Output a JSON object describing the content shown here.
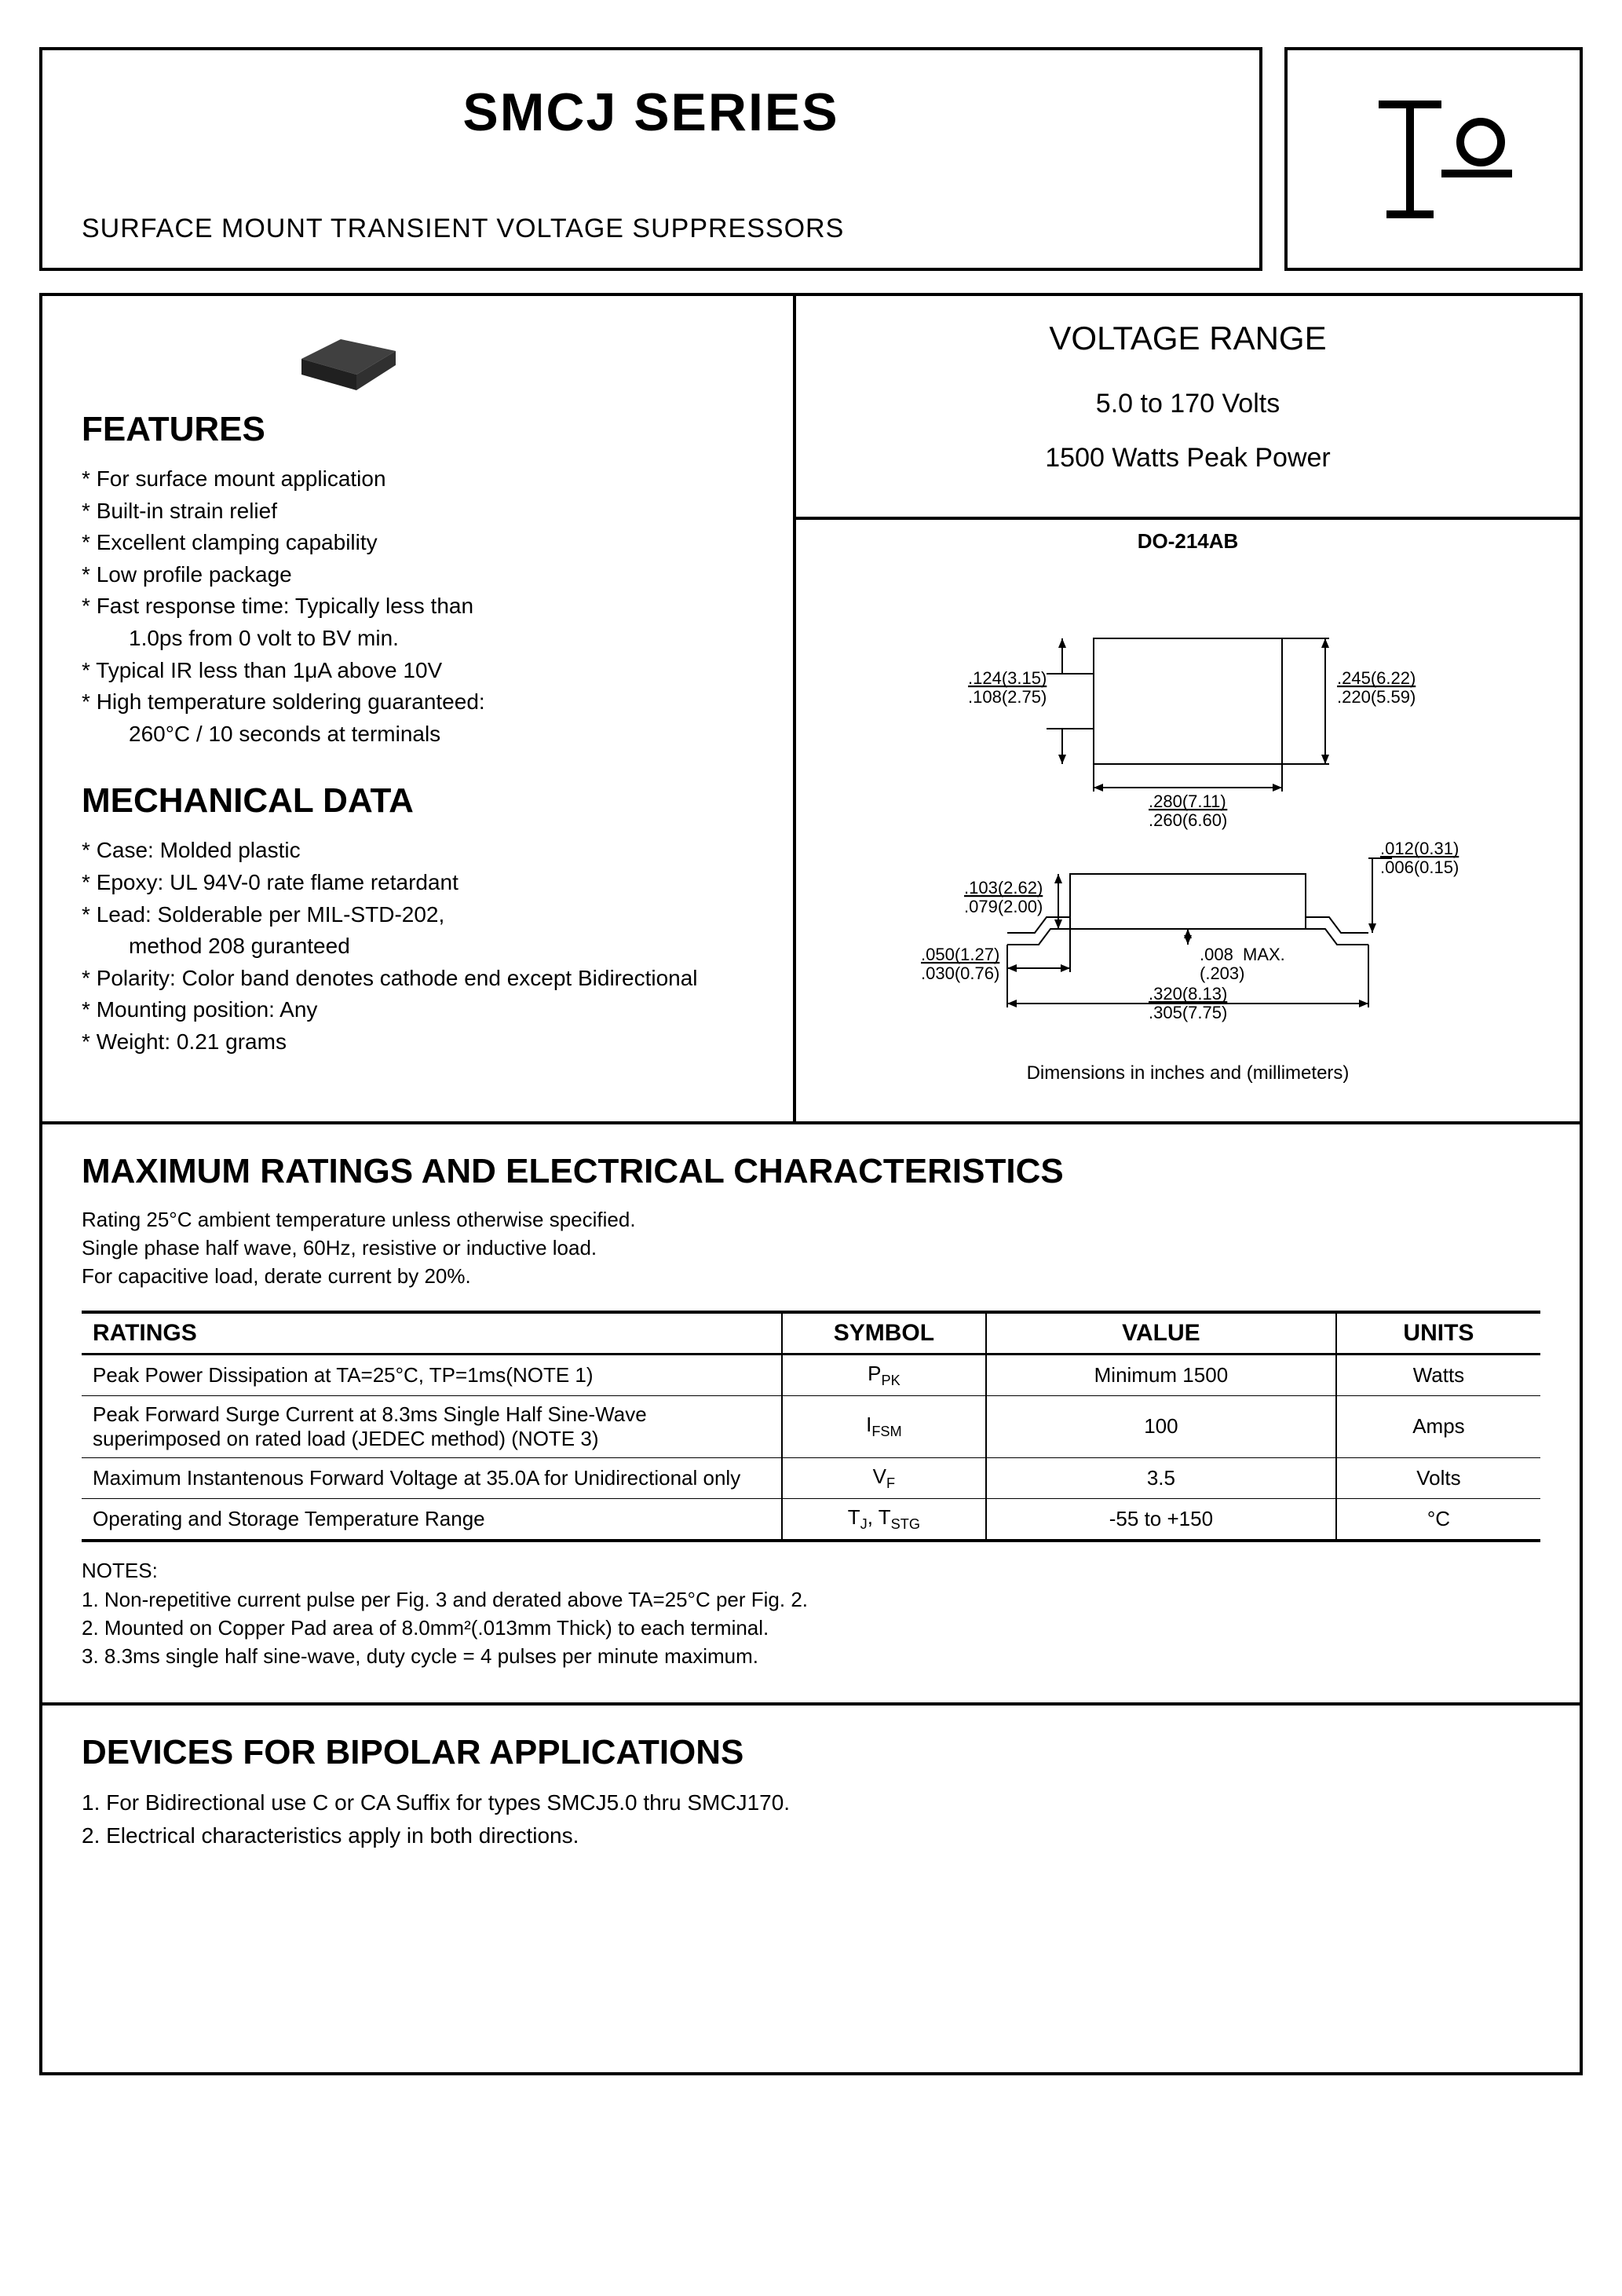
{
  "header": {
    "title": "SMCJ SERIES",
    "subtitle": "SURFACE MOUNT TRANSIENT VOLTAGE SUPPRESSORS"
  },
  "features": {
    "heading": "FEATURES",
    "items": [
      "For surface mount application",
      "Built-in strain relief",
      "Excellent clamping capability",
      "Low profile package",
      "Fast response time: Typically less than",
      "   1.0ps from 0 volt to BV min.",
      "Typical IR less than 1μA above 10V",
      "High temperature soldering guaranteed:",
      "   260°C / 10 seconds at terminals"
    ],
    "indent_flags": [
      false,
      false,
      false,
      false,
      false,
      true,
      false,
      false,
      true
    ]
  },
  "mechanical": {
    "heading": "MECHANICAL DATA",
    "items": [
      "Case: Molded plastic",
      "Epoxy: UL 94V-0 rate flame retardant",
      "Lead: Solderable per MIL-STD-202,",
      "             method 208 guranteed",
      "Polarity: Color band denotes cathode end except Bidirectional",
      "Mounting position: Any",
      "Weight: 0.21 grams"
    ],
    "indent_flags": [
      false,
      false,
      false,
      true,
      false,
      false,
      false
    ]
  },
  "voltage_range": {
    "heading": "VOLTAGE RANGE",
    "line1": "5.0 to 170 Volts",
    "line2": "1500 Watts Peak Power"
  },
  "package": {
    "label": "DO-214AB",
    "dim_note": "Dimensions in inches and (millimeters)",
    "top_view": {
      "left_dim_top": ".124(3.15)",
      "left_dim_bot": ".108(2.75)",
      "right_dim_top": ".245(6.22)",
      "right_dim_bot": ".220(5.59)",
      "width_top": ".280(7.11)",
      "width_bot": ".260(6.60)"
    },
    "side_view": {
      "h_top": ".103(2.62)",
      "h_bot": ".079(2.00)",
      "lead_top": ".050(1.27)",
      "lead_bot": ".030(0.76)",
      "standoff": ".008",
      "standoff2": "(.203)",
      "standoff_sfx": "MAX.",
      "len_top": ".320(8.13)",
      "len_bot": ".305(7.75)",
      "thick_top": ".012(0.31)",
      "thick_bot": ".006(0.15)"
    }
  },
  "ratings_section": {
    "heading": "MAXIMUM RATINGS AND ELECTRICAL CHARACTERISTICS",
    "intro_lines": [
      "Rating 25°C ambient temperature unless otherwise specified.",
      "Single phase half wave, 60Hz, resistive or inductive load.",
      "For capacitive load, derate current by 20%."
    ],
    "columns": [
      "RATINGS",
      "SYMBOL",
      "VALUE",
      "UNITS"
    ],
    "rows": [
      {
        "rating": "Peak Power Dissipation at TA=25°C, TP=1ms(NOTE 1)",
        "symbol": "PPK",
        "value": "Minimum 1500",
        "units": "Watts"
      },
      {
        "rating": "Peak Forward Surge Current at 8.3ms Single Half Sine-Wave superimposed on rated load (JEDEC method) (NOTE 3)",
        "symbol": "IFSM",
        "value": "100",
        "units": "Amps"
      },
      {
        "rating": "Maximum Instantenous Forward Voltage at 35.0A for Unidirectional only",
        "symbol": "VF",
        "value": "3.5",
        "units": "Volts"
      },
      {
        "rating": "Operating and Storage Temperature Range",
        "symbol": "TJ, TSTG",
        "value": "-55 to +150",
        "units": "°C"
      }
    ],
    "notes_heading": "NOTES:",
    "notes": [
      "1. Non-repetitive current pulse per Fig. 3 and derated above TA=25°C per Fig. 2.",
      "2. Mounted on Copper Pad area of 8.0mm²(.013mm Thick) to each terminal.",
      "3. 8.3ms single half sine-wave, duty cycle = 4 pulses per minute maximum."
    ]
  },
  "bipolar": {
    "heading": "DEVICES FOR BIPOLAR APPLICATIONS",
    "items": [
      "1. For Bidirectional use C or CA Suffix for types SMCJ5.0 thru SMCJ170.",
      "2. Electrical characteristics apply in both directions."
    ]
  },
  "styling": {
    "border_color": "#000000",
    "background": "#ffffff",
    "text_color": "#000000",
    "title_fontsize": 68,
    "section_fontsize": 44,
    "body_fontsize": 28
  }
}
